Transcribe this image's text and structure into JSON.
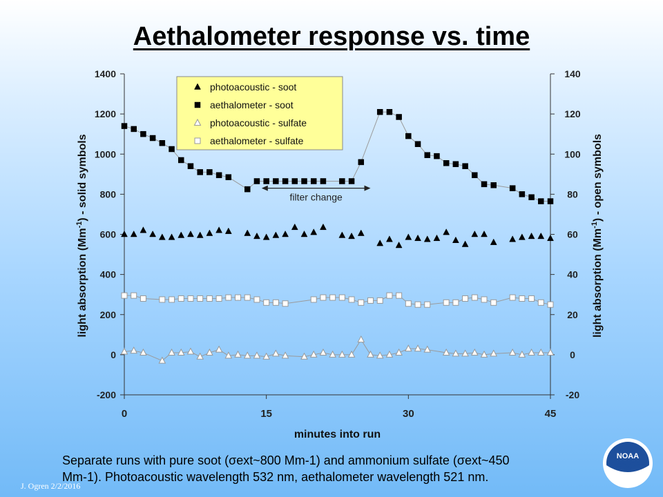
{
  "slide": {
    "title": "Aethalometer response vs. time",
    "caption_line1": "Separate runs with pure soot (σext~800 Mm-1) and ammonium sulfate (σext~450",
    "caption_line2": "Mm-1).  Photoacoustic wavelength 532 nm, aethalometer wavelength 521 nm.",
    "credit": "J. Ogren  2/2/2016",
    "logo_text": "NOAA"
  },
  "chart_data": {
    "type": "scatter",
    "xlabel": "minutes into run",
    "ylabel": "light absorption (Mm-1) - solid symbols",
    "y2label": "light absorption (Mm-1) - open symbols",
    "xlim": [
      0,
      45
    ],
    "ylim": [
      -200,
      1400
    ],
    "y2lim": [
      -20,
      140
    ],
    "xticks": [
      0,
      15,
      30,
      45
    ],
    "yticks": [
      -200,
      0,
      200,
      400,
      600,
      800,
      1000,
      1200,
      1400
    ],
    "y2ticks": [
      -20,
      0,
      20,
      40,
      60,
      80,
      100,
      120,
      140
    ],
    "grid": false,
    "legend_position": "top-left",
    "annotation": "filter change",
    "annotation_range": [
      14.5,
      26
    ],
    "annotation_y": 830,
    "series": [
      {
        "name": "photoacoustic - soot",
        "axis": "left",
        "marker": "triangle",
        "filled": true,
        "connected": false,
        "x": [
          0,
          1,
          2,
          3,
          4,
          5,
          6,
          7,
          8,
          9,
          10,
          11,
          13,
          14,
          15,
          16,
          17,
          18,
          19,
          20,
          21,
          23,
          24,
          25,
          27,
          28,
          29,
          30,
          31,
          32,
          33,
          34,
          35,
          36,
          37,
          38,
          39,
          41,
          42,
          43,
          44,
          45
        ],
        "y": [
          600,
          600,
          620,
          600,
          585,
          585,
          595,
          600,
          595,
          605,
          620,
          615,
          605,
          590,
          585,
          595,
          600,
          635,
          600,
          610,
          635,
          595,
          590,
          605,
          555,
          575,
          545,
          585,
          580,
          575,
          580,
          610,
          570,
          550,
          600,
          600,
          560,
          575,
          585,
          590,
          590,
          580
        ]
      },
      {
        "name": "aethalometer - soot",
        "axis": "left",
        "marker": "square",
        "filled": true,
        "connected": true,
        "x": [
          0,
          1,
          2,
          3,
          4,
          5,
          6,
          7,
          8,
          9,
          10,
          11,
          13,
          14,
          15,
          16,
          17,
          18,
          19,
          20,
          21,
          23,
          24,
          25,
          27,
          28,
          29,
          30,
          31,
          32,
          33,
          34,
          35,
          36,
          37,
          38,
          39,
          41,
          42,
          43,
          44,
          45
        ],
        "y": [
          1140,
          1125,
          1100,
          1080,
          1055,
          1025,
          970,
          940,
          910,
          910,
          895,
          885,
          825,
          865,
          865,
          865,
          865,
          865,
          865,
          865,
          865,
          865,
          865,
          960,
          1210,
          1210,
          1185,
          1090,
          1050,
          995,
          990,
          955,
          950,
          940,
          895,
          850,
          845,
          830,
          800,
          785,
          765,
          765
        ]
      },
      {
        "name": "photoacoustic - sulfate",
        "axis": "right",
        "marker": "triangle",
        "filled": false,
        "connected": true,
        "x": [
          0,
          1,
          2,
          4,
          5,
          6,
          7,
          8,
          9,
          10,
          11,
          12,
          13,
          14,
          15,
          16,
          17,
          19,
          20,
          21,
          22,
          23,
          24,
          25,
          26,
          27,
          28,
          29,
          30,
          31,
          32,
          34,
          35,
          36,
          37,
          38,
          39,
          41,
          42,
          43,
          44,
          45
        ],
        "y": [
          1.5,
          2,
          1,
          -3,
          1,
          1,
          1.5,
          -1,
          1,
          2.5,
          -0.5,
          0,
          -0.5,
          -0.5,
          -1,
          0.5,
          -0.5,
          -1,
          0,
          1,
          0,
          0,
          0,
          7.5,
          0,
          -0.5,
          0,
          1,
          3,
          3,
          2.5,
          1,
          0.5,
          0.5,
          1,
          0,
          0.5,
          1,
          0,
          1,
          1,
          1
        ]
      },
      {
        "name": "aethalometer - sulfate",
        "axis": "right",
        "marker": "square",
        "filled": false,
        "connected": true,
        "x": [
          0,
          1,
          2,
          4,
          5,
          6,
          7,
          8,
          9,
          10,
          11,
          12,
          13,
          14,
          15,
          16,
          17,
          20,
          21,
          22,
          23,
          24,
          25,
          26,
          27,
          28,
          29,
          30,
          31,
          32,
          34,
          35,
          36,
          37,
          38,
          39,
          41,
          42,
          43,
          44,
          45
        ],
        "y": [
          29.5,
          29.5,
          28,
          27.5,
          27.5,
          28,
          28,
          28,
          28,
          28,
          28.5,
          28.5,
          28.5,
          27.5,
          26,
          26,
          25.5,
          27.5,
          28.5,
          28.5,
          28.5,
          27.5,
          26,
          27,
          27,
          29.5,
          29.5,
          25.5,
          25,
          25,
          26,
          26,
          28,
          28.5,
          27.5,
          26,
          28.5,
          28,
          28,
          26,
          25
        ]
      }
    ]
  }
}
